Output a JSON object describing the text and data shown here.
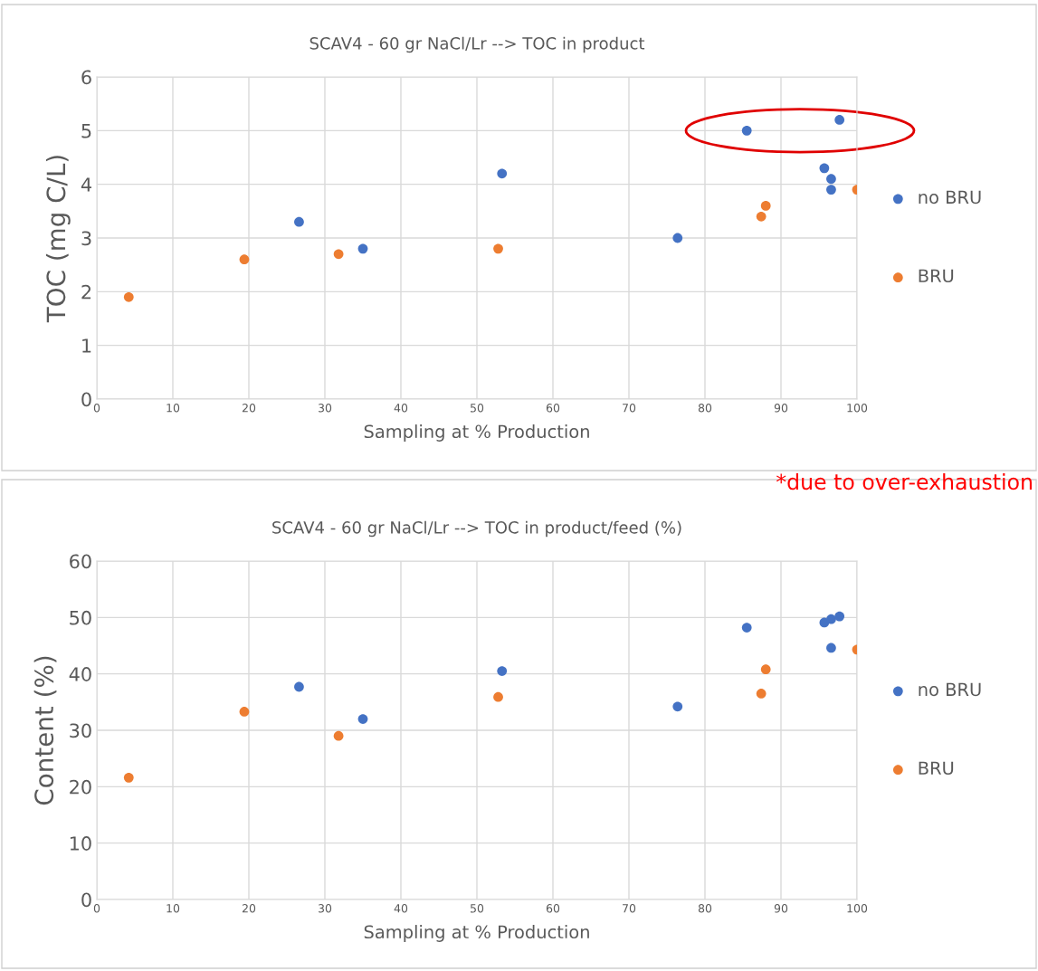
{
  "chart_data": [
    {
      "type": "scatter",
      "title": "SCAV4 - 60 gr NaCl/Lr --> TOC in product",
      "xlabel": "Sampling at % Production",
      "ylabel": "TOC (mg C/L)",
      "series": [
        {
          "name": "no BRU",
          "color": "#4472c4",
          "x": [
            26.6,
            35,
            53.3,
            76.4,
            85.5,
            95.7,
            96.6,
            96.6,
            97.7
          ],
          "values": [
            3.3,
            2.8,
            4.2,
            3.0,
            5.0,
            4.3,
            4.1,
            3.9,
            5.2
          ]
        },
        {
          "name": "BRU",
          "color": "#ed7d31",
          "x": [
            4.2,
            19.4,
            31.8,
            52.8,
            87.4,
            88.0,
            100
          ],
          "values": [
            1.9,
            2.6,
            2.7,
            2.8,
            3.4,
            3.6,
            3.9
          ]
        }
      ],
      "xlim": [
        0,
        100
      ],
      "xticks": [
        0,
        10,
        20,
        30,
        40,
        50,
        60,
        70,
        80,
        90,
        100
      ],
      "ylim": [
        0,
        6
      ],
      "yticks": [
        0,
        1,
        2,
        3,
        4,
        5,
        6
      ],
      "grid": true,
      "legend": "right",
      "marker": "circle",
      "annotations": [
        "*due to over-exhaustion"
      ]
    },
    {
      "type": "scatter",
      "title": "SCAV4 - 60 gr NaCl/Lr --> TOC in product/feed (%)",
      "xlabel": "Sampling at % Production",
      "ylabel": "Content (%)",
      "series": [
        {
          "name": "no BRU",
          "color": "#4472c4",
          "x": [
            26.6,
            35,
            53.3,
            76.4,
            85.5,
            95.7,
            96.6,
            96.6,
            97.7
          ],
          "values": [
            37.7,
            32.0,
            40.5,
            34.2,
            48.2,
            49.1,
            49.7,
            44.6,
            50.2
          ]
        },
        {
          "name": "BRU",
          "color": "#ed7d31",
          "x": [
            4.2,
            19.4,
            31.8,
            52.8,
            87.4,
            88.0,
            100
          ],
          "values": [
            21.6,
            33.3,
            29.0,
            35.9,
            36.5,
            40.8,
            44.3
          ]
        }
      ],
      "xlim": [
        0,
        100
      ],
      "xticks": [
        0,
        10,
        20,
        30,
        40,
        50,
        60,
        70,
        80,
        90,
        100
      ],
      "ylim": [
        0,
        60
      ],
      "yticks": [
        0,
        10,
        20,
        30,
        40,
        50,
        60
      ],
      "grid": true,
      "legend": "right",
      "marker": "circle"
    }
  ]
}
